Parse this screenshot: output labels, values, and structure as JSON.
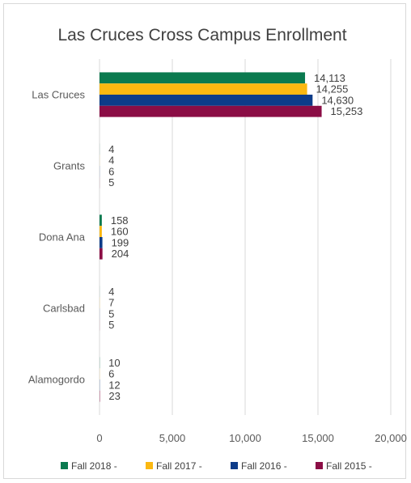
{
  "chart_data": {
    "type": "bar",
    "orientation": "horizontal",
    "title": "Las Cruces Cross Campus Enrollment",
    "categories": [
      "Las Cruces",
      "Grants",
      "Dona Ana",
      "Carlsbad",
      "Alamogordo"
    ],
    "series": [
      {
        "name": "Fall 2018 -",
        "color": "#0b7a4f",
        "values": [
          14113,
          4,
          158,
          4,
          10
        ]
      },
      {
        "name": "Fall 2017 -",
        "color": "#fbb811",
        "values": [
          14255,
          4,
          160,
          7,
          6
        ]
      },
      {
        "name": "Fall 2016 -",
        "color": "#0d3c89",
        "values": [
          14630,
          6,
          199,
          5,
          12
        ]
      },
      {
        "name": "Fall 2015 -",
        "color": "#8b0d45",
        "values": [
          15253,
          5,
          204,
          5,
          23
        ]
      }
    ],
    "data_labels": [
      [
        "14,113",
        "4",
        "158",
        "4",
        "10"
      ],
      [
        "14,255",
        "4",
        "160",
        "7",
        "6"
      ],
      [
        "14,630",
        "6",
        "199",
        "5",
        "12"
      ],
      [
        "15,253",
        "5",
        "204",
        "5",
        "23"
      ]
    ],
    "xlim": [
      0,
      20000
    ],
    "xticks": [
      0,
      5000,
      10000,
      15000,
      20000
    ],
    "xtick_labels": [
      "0",
      "5,000",
      "10,000",
      "15,000",
      "20,000"
    ],
    "grid": true,
    "legend_position": "bottom",
    "colors": {
      "grid": "#d9d9d9",
      "text": "#595959"
    }
  }
}
